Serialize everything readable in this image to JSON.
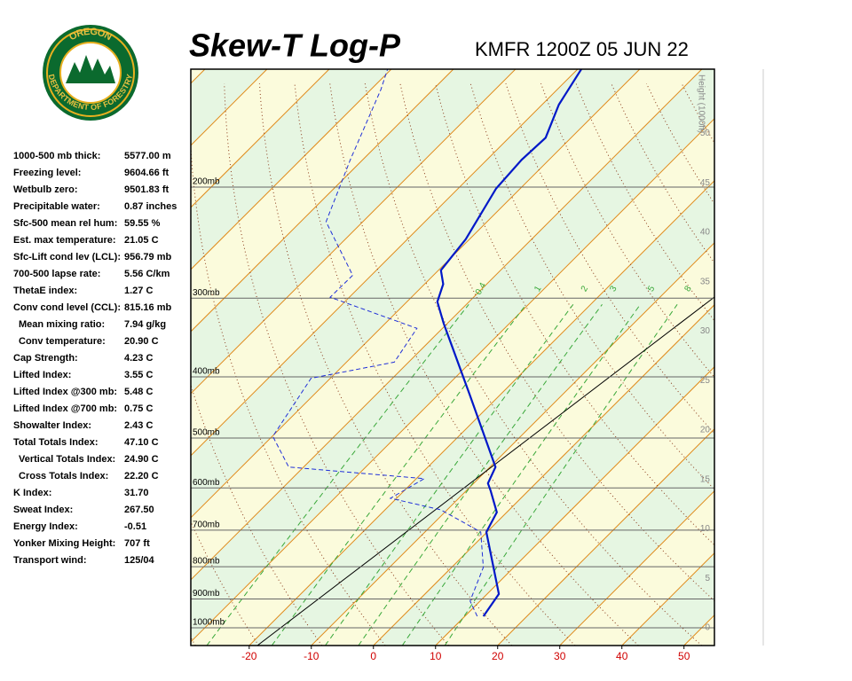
{
  "chart_data": {
    "type": "skewt",
    "title": "Skew-T Log-P",
    "subtitle": "KMFR 1200Z 05 JUN 22",
    "logo_top": "OREGON",
    "logo_bottom": "DEPARTMENT OF FORESTRY",
    "xlim": [
      -29.4,
      54.9
    ],
    "xticks": [
      -20,
      -10,
      0,
      10,
      20,
      30,
      40,
      50
    ],
    "ylim": [
      1067,
      130
    ],
    "pressure_levels": [
      {
        "value": 1000,
        "label": "1000mb"
      },
      {
        "value": 900,
        "label": "900mb"
      },
      {
        "value": 800,
        "label": "800mb"
      },
      {
        "value": 700,
        "label": "700mb"
      },
      {
        "value": 600,
        "label": "600mb"
      },
      {
        "value": 500,
        "label": "500mb"
      },
      {
        "value": 400,
        "label": "400mb"
      },
      {
        "value": 300,
        "label": "300mb"
      },
      {
        "value": 200,
        "label": "200mb"
      }
    ],
    "height_label": "Height (1000ft)",
    "height_lim": [
      0,
      56.5
    ],
    "height_ticks": [
      0,
      5,
      10,
      15,
      20,
      25,
      30,
      35,
      40,
      45,
      50
    ],
    "mixing_ratios": [
      0.4,
      1,
      2,
      3,
      5,
      8
    ],
    "temperature": {
      "color": "#0018c8",
      "pressure": [
        959,
        884,
        705,
        656,
        606,
        590,
        556,
        427,
        329,
        304,
        285,
        271,
        242,
        201,
        181,
        167,
        148,
        130
      ],
      "values": [
        13.0,
        11.9,
        -0.1,
        -1.6,
        -6.1,
        -7.7,
        -9.1,
        -24.9,
        -40.6,
        -45.1,
        -47.0,
        -49.6,
        -50.6,
        -53.9,
        -54.4,
        -54.1,
        -57.3,
        -59.4
      ]
    },
    "dewpoint": {
      "color": "#2030d8",
      "pressure": [
        959,
        907,
        802,
        705,
        650,
        623,
        580,
        556,
        497,
        402,
        379,
        335,
        299,
        276,
        227,
        181,
        140,
        130
      ],
      "values": [
        12.0,
        8.4,
        5.1,
        -1.0,
        -11.0,
        -21.0,
        -18.7,
        -42.4,
        -49.9,
        -53.1,
        -42.3,
        -44.1,
        -63.1,
        -63.0,
        -75.9,
        -82.0,
        -88.4,
        -90.6
      ]
    },
    "indices": [
      {
        "label": "1000-500 mb thick:",
        "value": "5577.00 m"
      },
      {
        "label": "Freezing level:",
        "value": "9604.66 ft"
      },
      {
        "label": "Wetbulb zero:",
        "value": "9501.83 ft"
      },
      {
        "label": "Precipitable water:",
        "value": "0.87 inches"
      },
      {
        "label": "Sfc-500 mean rel hum:",
        "value": "59.55 %"
      },
      {
        "label": "Est. max temperature:",
        "value": "21.05 C"
      },
      {
        "label": "Sfc-Lift cond lev (LCL):",
        "value": "956.79 mb"
      },
      {
        "label": "700-500 lapse rate:",
        "value": "5.56 C/km"
      },
      {
        "label": "ThetaE index:",
        "value": "1.27 C"
      },
      {
        "label": "Conv cond level (CCL):",
        "value": "815.16 mb"
      },
      {
        "label": "Mean mixing ratio:",
        "value": "7.94 g/kg",
        "indent": true
      },
      {
        "label": "Conv temperature:",
        "value": "20.90 C",
        "indent": true
      },
      {
        "label": "Cap Strength:",
        "value": "4.23 C"
      },
      {
        "label": "Lifted Index:",
        "value": "3.55 C"
      },
      {
        "label": "Lifted Index @300 mb:",
        "value": "5.48 C"
      },
      {
        "label": "Lifted Index @700 mb:",
        "value": "0.75 C"
      },
      {
        "label": "Showalter Index:",
        "value": "2.43 C"
      },
      {
        "label": "Total Totals Index:",
        "value": "47.10 C"
      },
      {
        "label": "Vertical Totals Index:",
        "value": "24.90 C",
        "indent": true
      },
      {
        "label": "Cross Totals Index:",
        "value": "22.20 C",
        "indent": true
      },
      {
        "label": "K Index:",
        "value": "31.70"
      },
      {
        "label": "Sweat Index:",
        "value": "267.50"
      },
      {
        "label": "Energy Index:",
        "value": "-0.51"
      },
      {
        "label": "Yonker Mixing Height:",
        "value": "707 ft"
      },
      {
        "label": "Transport wind:",
        "value": "125/04"
      }
    ]
  }
}
